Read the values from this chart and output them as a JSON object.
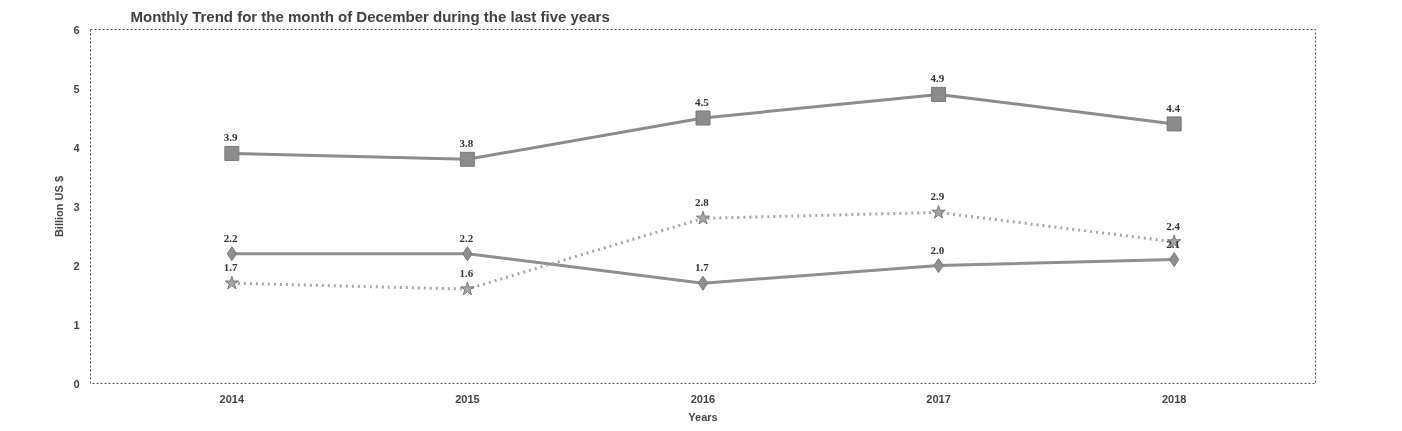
{
  "chart_data": {
    "type": "line",
    "title": "Monthly Trend for the month of December during the last five  years",
    "xlabel": "Years",
    "ylabel": "Billion US $",
    "categories": [
      "2014",
      "2015",
      "2016",
      "2017",
      "2018"
    ],
    "series": [
      {
        "color": "#8c8c8c",
        "marker": "square",
        "line_style": "solid",
        "values": [
          3.9,
          3.8,
          4.5,
          4.9,
          4.4
        ],
        "value_labels": [
          "3.9",
          "3.8",
          "4.5",
          "4.9",
          "4.4"
        ]
      },
      {
        "color": "#8f8f8f",
        "marker": "diamond",
        "line_style": "solid",
        "values": [
          2.2,
          2.2,
          1.7,
          2.0,
          2.1
        ],
        "value_labels": [
          "2.2",
          "2.2",
          "1.7",
          "2.0",
          "2.1"
        ]
      },
      {
        "color": "#a6a6a6",
        "marker": "star",
        "line_style": "dotted",
        "values": [
          1.7,
          1.6,
          2.8,
          2.9,
          2.4
        ],
        "value_labels": [
          "1.7",
          "1.6",
          "2.8",
          "2.9",
          "2.4"
        ]
      }
    ],
    "ylim": [
      0,
      6
    ],
    "yticks": [
      0,
      1,
      2,
      3,
      4,
      5,
      6
    ],
    "grid": false
  }
}
